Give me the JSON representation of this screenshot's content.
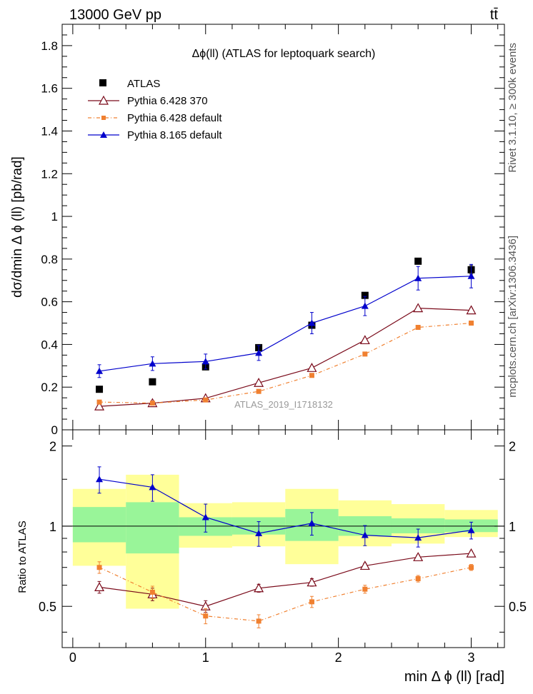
{
  "header": {
    "energy_label": "13000 GeV pp",
    "process_label": "tt̄"
  },
  "side_labels": {
    "rivet": "Rivet 3.1.10, ≥ 300k events",
    "mcplots": "mcplots.cern.ch [arXiv:1306.3436]"
  },
  "colors": {
    "atlas": "#000000",
    "p6_370": "#7a0a1a",
    "p6_default": "#f08030",
    "p8_default": "#0000cc",
    "band_inner": "#99f599",
    "band_outer": "#ffff99"
  },
  "chart_data": [
    {
      "type": "scatter",
      "panel": "main",
      "title": "Δϕ(ll) (ATLAS for leptoquark search)",
      "ylabel": "dσ/dmin Δ ϕ (ll) [pb/rad]",
      "watermark": "ATLAS_2019_I1718132",
      "xlim": [
        -0.08,
        3.25
      ],
      "ylim": [
        0,
        1.9
      ],
      "yticks": [
        0,
        0.2,
        0.4,
        0.6,
        0.8,
        1,
        1.2,
        1.4,
        1.6,
        1.8
      ],
      "ytick_labels": [
        "0",
        "0.2",
        "0.4",
        "0.6",
        "0.8",
        "1",
        "1.2",
        "1.4",
        "1.6",
        "1.8"
      ],
      "x": [
        0.2,
        0.6,
        1.0,
        1.4,
        1.8,
        2.2,
        2.6,
        3.0
      ],
      "bin_edges": [
        0,
        0.4,
        0.8,
        1.2,
        1.6,
        2.0,
        2.4,
        2.8,
        3.2
      ],
      "series": [
        {
          "name": "ATLAS",
          "key": "atlas",
          "marker": "square",
          "values": [
            0.19,
            0.225,
            0.295,
            0.385,
            0.49,
            0.63,
            0.79,
            0.75
          ],
          "err": [
            0.005,
            0.005,
            0.006,
            0.008,
            0.01,
            0.012,
            0.012,
            0.02
          ]
        },
        {
          "name": "Pythia 6.428 370",
          "key": "p6_370",
          "marker": "open-triangle",
          "values": [
            0.11,
            0.125,
            0.148,
            0.22,
            0.29,
            0.42,
            0.57,
            0.56
          ],
          "err": [
            0.004,
            0.004,
            0.005,
            0.006,
            0.007,
            0.008,
            0.01,
            0.01
          ]
        },
        {
          "name": "Pythia 6.428 default",
          "key": "p6_default",
          "marker": "small-square",
          "values": [
            0.13,
            0.125,
            0.14,
            0.18,
            0.255,
            0.355,
            0.48,
            0.5
          ],
          "err": [
            0.004,
            0.004,
            0.005,
            0.005,
            0.006,
            0.008,
            0.009,
            0.009
          ]
        },
        {
          "name": "Pythia 8.165 default",
          "key": "p8_default",
          "marker": "triangle",
          "values": [
            0.275,
            0.31,
            0.32,
            0.36,
            0.5,
            0.58,
            0.71,
            0.72
          ],
          "err": [
            0.03,
            0.032,
            0.035,
            0.035,
            0.05,
            0.045,
            0.055,
            0.055
          ]
        }
      ]
    },
    {
      "type": "scatter",
      "panel": "ratio",
      "ylabel": "Ratio to ATLAS",
      "xlabel": "min Δ ϕ (ll) [rad]",
      "xlim": [
        -0.08,
        3.25
      ],
      "ylim": [
        0.35,
        2.3
      ],
      "xticks": [
        0,
        1,
        2,
        3
      ],
      "xtick_labels": [
        "0",
        "1",
        "2",
        "3"
      ],
      "yticks": [
        0.5,
        1,
        2
      ],
      "ytick_labels": [
        "0.5",
        "1",
        "2"
      ],
      "x": [
        0.2,
        0.6,
        1.0,
        1.4,
        1.8,
        2.2,
        2.6,
        3.0
      ],
      "bin_edges": [
        0,
        0.4,
        0.8,
        1.2,
        1.6,
        2.0,
        2.4,
        2.8,
        3.2
      ],
      "band_inner": [
        [
          0.87,
          1.18
        ],
        [
          0.79,
          1.23
        ],
        [
          0.92,
          1.08
        ],
        [
          0.93,
          1.08
        ],
        [
          0.88,
          1.16
        ],
        [
          0.92,
          1.09
        ],
        [
          0.94,
          1.07
        ],
        [
          0.95,
          1.06
        ]
      ],
      "band_outer": [
        [
          0.71,
          1.38
        ],
        [
          0.49,
          1.56
        ],
        [
          0.83,
          1.22
        ],
        [
          0.84,
          1.23
        ],
        [
          0.72,
          1.38
        ],
        [
          0.84,
          1.25
        ],
        [
          0.86,
          1.21
        ],
        [
          0.91,
          1.15
        ]
      ],
      "series": [
        {
          "name": "Pythia 6.428 370",
          "key": "p6_370",
          "marker": "open-triangle",
          "values": [
            0.59,
            0.555,
            0.5,
            0.585,
            0.615,
            0.71,
            0.765,
            0.79
          ],
          "err": [
            0.03,
            0.03,
            0.025,
            0.02,
            0.02,
            0.015,
            0.015,
            0.015
          ]
        },
        {
          "name": "Pythia 6.428 default",
          "key": "p6_default",
          "marker": "small-square",
          "values": [
            0.7,
            0.565,
            0.46,
            0.44,
            0.52,
            0.58,
            0.635,
            0.7
          ],
          "err": [
            0.035,
            0.03,
            0.03,
            0.025,
            0.025,
            0.02,
            0.018,
            0.018
          ]
        },
        {
          "name": "Pythia 8.165 default",
          "key": "p8_default",
          "marker": "triangle",
          "values": [
            1.5,
            1.4,
            1.08,
            0.94,
            1.025,
            0.925,
            0.905,
            0.965
          ],
          "err": [
            0.17,
            0.16,
            0.13,
            0.1,
            0.1,
            0.08,
            0.07,
            0.07
          ]
        }
      ]
    }
  ]
}
